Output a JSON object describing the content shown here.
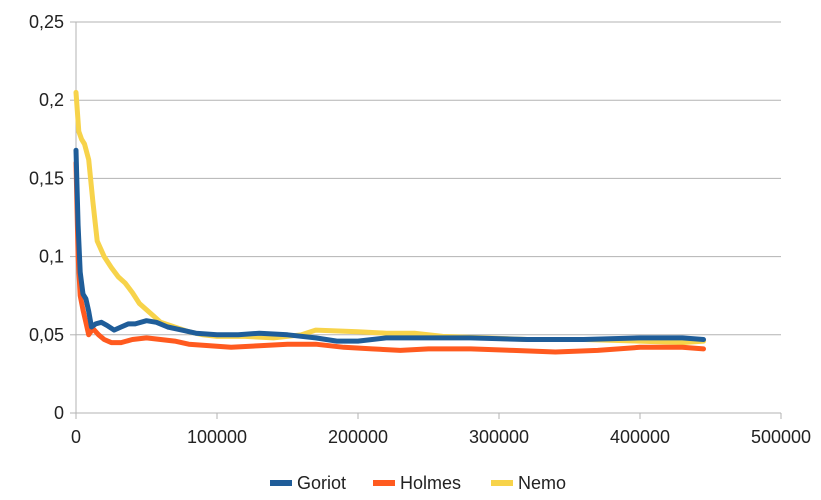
{
  "chart_data": {
    "type": "line",
    "title": "",
    "xlabel": "",
    "ylabel": "",
    "xlim": [
      0,
      500000
    ],
    "ylim": [
      0,
      0.25
    ],
    "x_ticks": [
      0,
      100000,
      200000,
      300000,
      400000,
      500000
    ],
    "x_tick_labels": [
      "0",
      "100000",
      "200000",
      "300000",
      "400000",
      "500000"
    ],
    "y_ticks": [
      0,
      0.05,
      0.1,
      0.15,
      0.2,
      0.25
    ],
    "y_tick_labels": [
      "0",
      "0,05",
      "0,1",
      "0,15",
      "0,2",
      "0,25"
    ],
    "grid": "horizontal",
    "legend_position": "bottom",
    "series": [
      {
        "name": "Goriot",
        "color": "#1f5d99",
        "points": [
          [
            0,
            0.168
          ],
          [
            1500,
            0.12
          ],
          [
            3000,
            0.09
          ],
          [
            5000,
            0.076
          ],
          [
            7000,
            0.073
          ],
          [
            9000,
            0.065
          ],
          [
            11000,
            0.055
          ],
          [
            14000,
            0.057
          ],
          [
            18000,
            0.058
          ],
          [
            22000,
            0.056
          ],
          [
            27000,
            0.053
          ],
          [
            32000,
            0.055
          ],
          [
            37000,
            0.057
          ],
          [
            42000,
            0.057
          ],
          [
            50000,
            0.059
          ],
          [
            57000,
            0.058
          ],
          [
            65000,
            0.055
          ],
          [
            75000,
            0.053
          ],
          [
            85000,
            0.051
          ],
          [
            100000,
            0.05
          ],
          [
            115000,
            0.05
          ],
          [
            130000,
            0.051
          ],
          [
            150000,
            0.05
          ],
          [
            170000,
            0.048
          ],
          [
            185000,
            0.046
          ],
          [
            200000,
            0.046
          ],
          [
            220000,
            0.048
          ],
          [
            250000,
            0.048
          ],
          [
            280000,
            0.048
          ],
          [
            320000,
            0.047
          ],
          [
            360000,
            0.047
          ],
          [
            400000,
            0.048
          ],
          [
            430000,
            0.048
          ],
          [
            445000,
            0.047
          ]
        ]
      },
      {
        "name": "Holmes",
        "color": "#ff5a1f",
        "points": [
          [
            0,
            0.16
          ],
          [
            1500,
            0.1
          ],
          [
            3000,
            0.075
          ],
          [
            5000,
            0.066
          ],
          [
            7000,
            0.058
          ],
          [
            9000,
            0.05
          ],
          [
            12000,
            0.054
          ],
          [
            16000,
            0.05
          ],
          [
            20000,
            0.047
          ],
          [
            25000,
            0.045
          ],
          [
            32000,
            0.045
          ],
          [
            40000,
            0.047
          ],
          [
            50000,
            0.048
          ],
          [
            60000,
            0.047
          ],
          [
            70000,
            0.046
          ],
          [
            80000,
            0.044
          ],
          [
            95000,
            0.043
          ],
          [
            110000,
            0.042
          ],
          [
            130000,
            0.043
          ],
          [
            150000,
            0.044
          ],
          [
            170000,
            0.044
          ],
          [
            190000,
            0.042
          ],
          [
            210000,
            0.041
          ],
          [
            230000,
            0.04
          ],
          [
            250000,
            0.041
          ],
          [
            280000,
            0.041
          ],
          [
            310000,
            0.04
          ],
          [
            340000,
            0.039
          ],
          [
            370000,
            0.04
          ],
          [
            400000,
            0.042
          ],
          [
            430000,
            0.042
          ],
          [
            445000,
            0.041
          ]
        ]
      },
      {
        "name": "Nemo",
        "color": "#f7d34a",
        "points": [
          [
            0,
            0.205
          ],
          [
            2000,
            0.18
          ],
          [
            4000,
            0.175
          ],
          [
            6000,
            0.172
          ],
          [
            9000,
            0.162
          ],
          [
            12000,
            0.135
          ],
          [
            15000,
            0.11
          ],
          [
            20000,
            0.1
          ],
          [
            25000,
            0.093
          ],
          [
            30000,
            0.087
          ],
          [
            35000,
            0.083
          ],
          [
            40000,
            0.077
          ],
          [
            45000,
            0.07
          ],
          [
            50000,
            0.066
          ],
          [
            55000,
            0.062
          ],
          [
            60000,
            0.058
          ],
          [
            70000,
            0.055
          ],
          [
            80000,
            0.052
          ],
          [
            90000,
            0.05
          ],
          [
            100000,
            0.049
          ],
          [
            120000,
            0.049
          ],
          [
            140000,
            0.048
          ],
          [
            160000,
            0.05
          ],
          [
            170000,
            0.053
          ],
          [
            200000,
            0.052
          ],
          [
            220000,
            0.051
          ],
          [
            240000,
            0.051
          ],
          [
            260000,
            0.049
          ],
          [
            290000,
            0.048
          ],
          [
            320000,
            0.047
          ],
          [
            360000,
            0.047
          ],
          [
            400000,
            0.046
          ],
          [
            430000,
            0.045
          ],
          [
            445000,
            0.046
          ]
        ]
      }
    ]
  }
}
